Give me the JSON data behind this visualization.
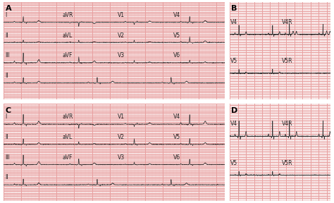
{
  "bg_color": "#fce8e8",
  "grid_major_color": "#e8a0a0",
  "grid_minor_color": "#f5d0d0",
  "line_color": "#333333",
  "label_color": "#222222",
  "panel_labels": [
    "A",
    "B",
    "C",
    "D"
  ],
  "border_color": "#888888",
  "title_fontsize": 7,
  "lead_fontsize": 5.5
}
